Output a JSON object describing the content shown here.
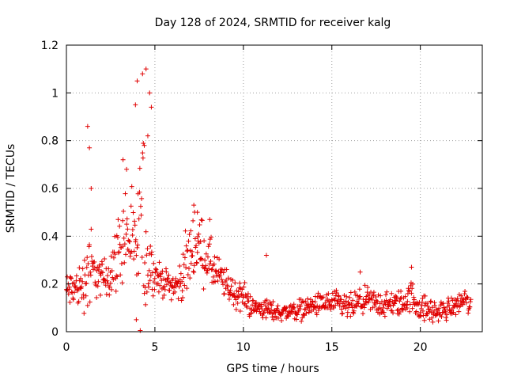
{
  "chart_data": {
    "type": "scatter",
    "title": "Day 128 of 2024, SRMTID for receiver kalg",
    "xlabel": "GPS time / hours",
    "ylabel": "SRMTID / TECUs",
    "xlim": [
      0,
      23.5
    ],
    "ylim": [
      0,
      1.2
    ],
    "xticks": [
      0,
      5,
      10,
      15,
      20
    ],
    "yticks": [
      0,
      0.2,
      0.4,
      0.6,
      0.8,
      1,
      1.2
    ],
    "xtick_labels": [
      "0",
      "5",
      "10",
      "15",
      "20"
    ],
    "ytick_labels": [
      "0",
      "0.2",
      "0.4",
      "0.6",
      "0.8",
      "1",
      "1.2"
    ],
    "grid": true,
    "marker": "plus",
    "series": [
      {
        "name": "SRMTID",
        "color": "#e00000",
        "x_step": 0.025,
        "x_start": 0,
        "x_end": 22.85,
        "envelope": {
          "x": [
            0,
            0.5,
            1.0,
            1.2,
            1.5,
            2.0,
            2.5,
            3.0,
            3.3,
            3.6,
            4.0,
            4.3,
            4.6,
            4.9,
            5.2,
            5.8,
            6.3,
            6.8,
            7.2,
            7.6,
            8.0,
            8.5,
            9.0,
            9.5,
            10.0,
            10.5,
            11.0,
            11.5,
            12.0,
            13.0,
            14.0,
            15.0,
            16.0,
            16.5,
            17.0,
            18.0,
            19.0,
            19.5,
            20.0,
            20.5,
            21.0,
            22.0,
            22.5,
            22.85
          ],
          "center": [
            0.17,
            0.18,
            0.2,
            0.28,
            0.25,
            0.22,
            0.25,
            0.35,
            0.42,
            0.38,
            0.32,
            0.45,
            0.3,
            0.25,
            0.22,
            0.2,
            0.19,
            0.28,
            0.38,
            0.35,
            0.3,
            0.24,
            0.2,
            0.16,
            0.15,
            0.1,
            0.1,
            0.09,
            0.08,
            0.09,
            0.11,
            0.12,
            0.1,
            0.12,
            0.13,
            0.11,
            0.12,
            0.15,
            0.1,
            0.09,
            0.08,
            0.11,
            0.14,
            0.1
          ],
          "spread": [
            0.07,
            0.08,
            0.1,
            0.28,
            0.1,
            0.07,
            0.1,
            0.15,
            0.2,
            0.16,
            0.18,
            0.45,
            0.2,
            0.07,
            0.06,
            0.05,
            0.06,
            0.12,
            0.14,
            0.12,
            0.1,
            0.08,
            0.06,
            0.06,
            0.06,
            0.04,
            0.04,
            0.04,
            0.03,
            0.04,
            0.04,
            0.05,
            0.05,
            0.05,
            0.05,
            0.05,
            0.05,
            0.06,
            0.05,
            0.05,
            0.04,
            0.04,
            0.04,
            0.04
          ]
        },
        "peaks": [
          {
            "x": 1.2,
            "y": 0.86
          },
          {
            "x": 1.3,
            "y": 0.77
          },
          {
            "x": 1.4,
            "y": 0.6
          },
          {
            "x": 3.2,
            "y": 0.72
          },
          {
            "x": 3.4,
            "y": 0.68
          },
          {
            "x": 3.9,
            "y": 0.95
          },
          {
            "x": 4.0,
            "y": 1.05
          },
          {
            "x": 4.3,
            "y": 1.08
          },
          {
            "x": 4.5,
            "y": 1.1
          },
          {
            "x": 4.7,
            "y": 1.0
          },
          {
            "x": 4.8,
            "y": 0.94
          },
          {
            "x": 4.6,
            "y": 0.82
          },
          {
            "x": 4.4,
            "y": 0.78
          },
          {
            "x": 3.95,
            "y": 0.05
          },
          {
            "x": 7.2,
            "y": 0.53
          },
          {
            "x": 7.4,
            "y": 0.5
          },
          {
            "x": 8.1,
            "y": 0.47
          },
          {
            "x": 11.3,
            "y": 0.32
          },
          {
            "x": 16.6,
            "y": 0.25
          },
          {
            "x": 19.5,
            "y": 0.27
          }
        ]
      }
    ]
  }
}
